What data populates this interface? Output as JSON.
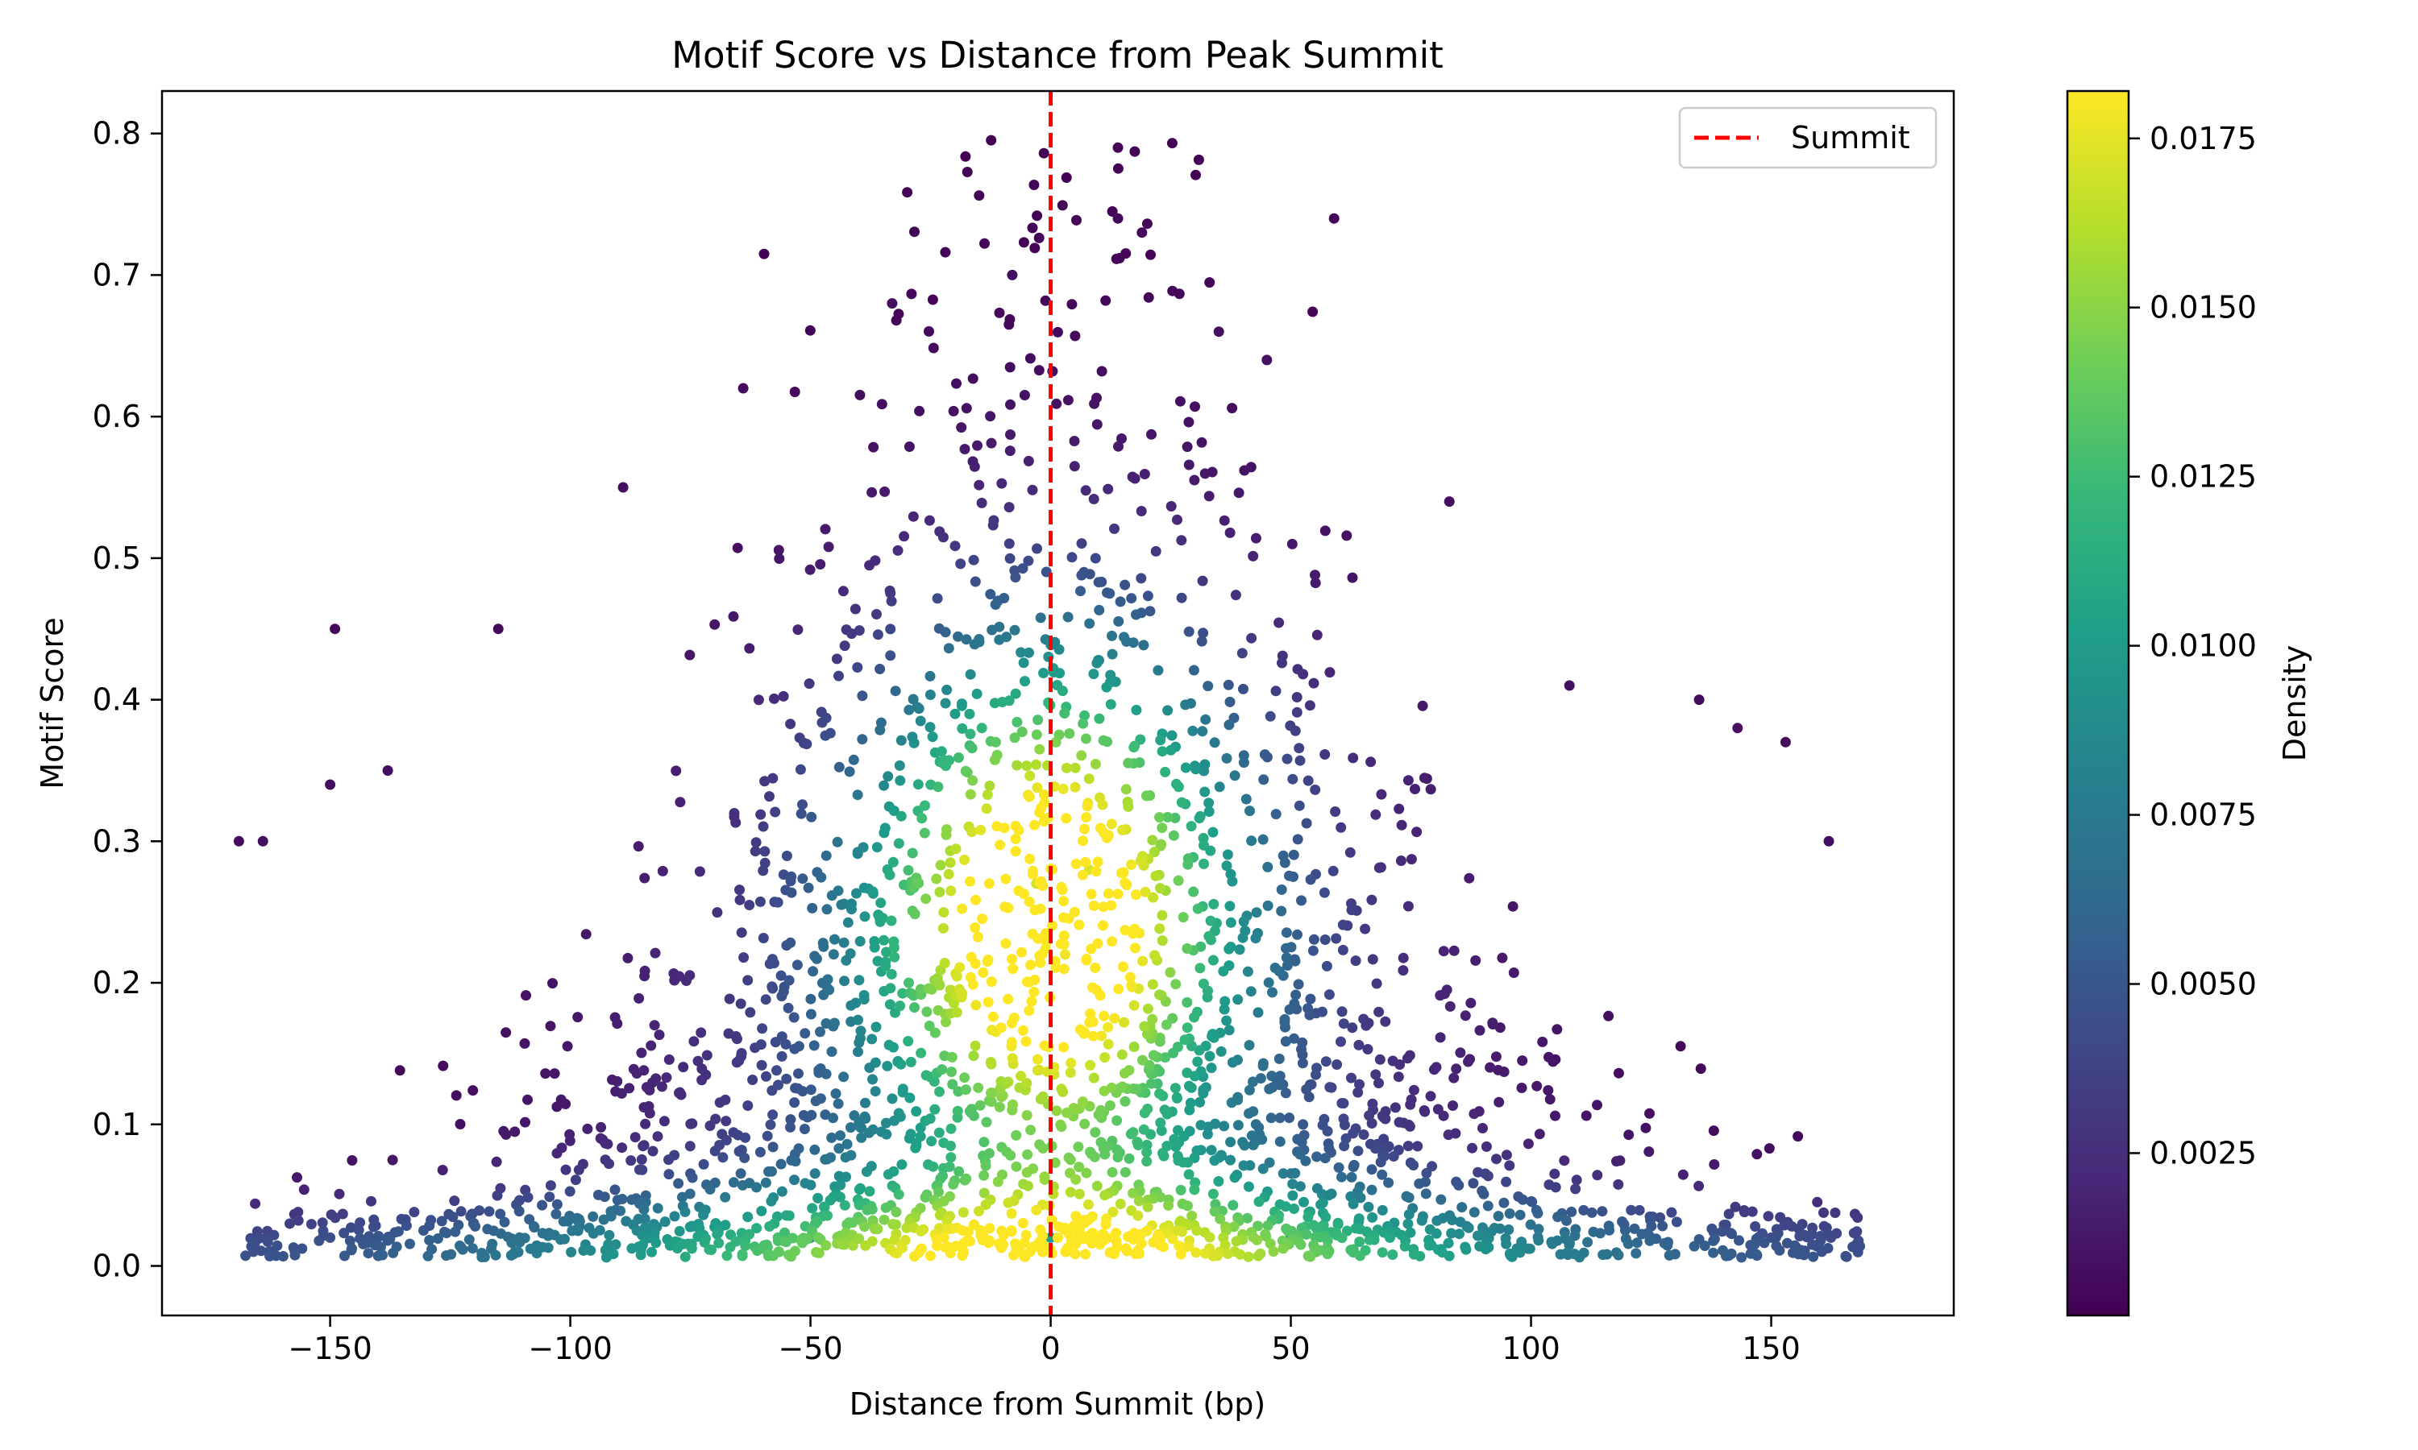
{
  "chart_data": {
    "type": "scatter",
    "title": "Motif Score vs Distance from Peak Summit",
    "xlabel": "Distance from Summit (bp)",
    "ylabel": "Motif Score",
    "xlim": [
      -185,
      188
    ],
    "ylim": [
      -0.035,
      0.83
    ],
    "x_ticks": [
      -150,
      -100,
      -50,
      0,
      50,
      100,
      150
    ],
    "x_tick_labels": [
      "−150",
      "−100",
      "−50",
      "0",
      "50",
      "100",
      "150"
    ],
    "y_ticks": [
      0.0,
      0.1,
      0.2,
      0.3,
      0.4,
      0.5,
      0.6,
      0.7,
      0.8
    ],
    "y_tick_labels": [
      "0.0",
      "0.1",
      "0.2",
      "0.3",
      "0.4",
      "0.5",
      "0.6",
      "0.7",
      "0.8"
    ],
    "grid": false,
    "legend": {
      "placement": "top-right",
      "entries": [
        {
          "label": "Summit",
          "color": "#ff0000",
          "style": "dashed"
        }
      ]
    },
    "summit_line": {
      "x": 0,
      "color": "#ff0000",
      "style": "dashed"
    },
    "colorbar": {
      "label": "Density",
      "colormap": "viridis",
      "range": [
        0.0001,
        0.0182
      ],
      "ticks": [
        0.0025,
        0.005,
        0.0075,
        0.01,
        0.0125,
        0.015,
        0.0175
      ],
      "tick_labels": [
        "0.0025",
        "0.0050",
        "0.0075",
        "0.0100",
        "0.0125",
        "0.0150",
        "0.0175"
      ],
      "stops": [
        "#440154",
        "#482878",
        "#3e4989",
        "#31688e",
        "#26828e",
        "#1f9e89",
        "#35b779",
        "#6ece58",
        "#b5de2b",
        "#fde725"
      ]
    },
    "sample_points": [
      {
        "x": 14,
        "y": 0.79,
        "density": 0.0002
      },
      {
        "x": 59,
        "y": 0.74,
        "density": 0.0003
      },
      {
        "x": 14,
        "y": 0.74,
        "density": 0.0005
      },
      {
        "x": 19,
        "y": 0.73,
        "density": 0.0005
      },
      {
        "x": -8,
        "y": 0.7,
        "density": 0.0008
      },
      {
        "x": -33,
        "y": 0.68,
        "density": 0.0007
      },
      {
        "x": 35,
        "y": 0.66,
        "density": 0.0008
      },
      {
        "x": -64,
        "y": 0.62,
        "density": 0.0006
      },
      {
        "x": 45,
        "y": 0.64,
        "density": 0.0009
      },
      {
        "x": -89,
        "y": 0.55,
        "density": 0.0007
      },
      {
        "x": 83,
        "y": 0.54,
        "density": 0.0008
      },
      {
        "x": -149,
        "y": 0.45,
        "density": 0.0004
      },
      {
        "x": -115,
        "y": 0.45,
        "density": 0.0005
      },
      {
        "x": 108,
        "y": 0.41,
        "density": 0.0008
      },
      {
        "x": 135,
        "y": 0.4,
        "density": 0.0007
      },
      {
        "x": 153,
        "y": 0.37,
        "density": 0.0006
      },
      {
        "x": 162,
        "y": 0.3,
        "density": 0.0008
      },
      {
        "x": -169,
        "y": 0.3,
        "density": 0.0007
      },
      {
        "x": -164,
        "y": 0.3,
        "density": 0.0008
      },
      {
        "x": -138,
        "y": 0.35,
        "density": 0.0007
      },
      {
        "x": -150,
        "y": 0.34,
        "density": 0.0008
      },
      {
        "x": 143,
        "y": 0.38,
        "density": 0.0009
      },
      {
        "x": 5,
        "y": 0.25,
        "density": 0.018
      },
      {
        "x": 3,
        "y": 0.22,
        "density": 0.0178
      },
      {
        "x": 8,
        "y": 0.28,
        "density": 0.0172
      },
      {
        "x": -3,
        "y": 0.27,
        "density": 0.017
      },
      {
        "x": 0,
        "y": 0.02,
        "density": 0.01
      },
      {
        "x": -50,
        "y": 0.02,
        "density": 0.008
      },
      {
        "x": 50,
        "y": 0.02,
        "density": 0.008
      },
      {
        "x": -150,
        "y": 0.02,
        "density": 0.0045
      },
      {
        "x": 150,
        "y": 0.02,
        "density": 0.0045
      }
    ]
  }
}
